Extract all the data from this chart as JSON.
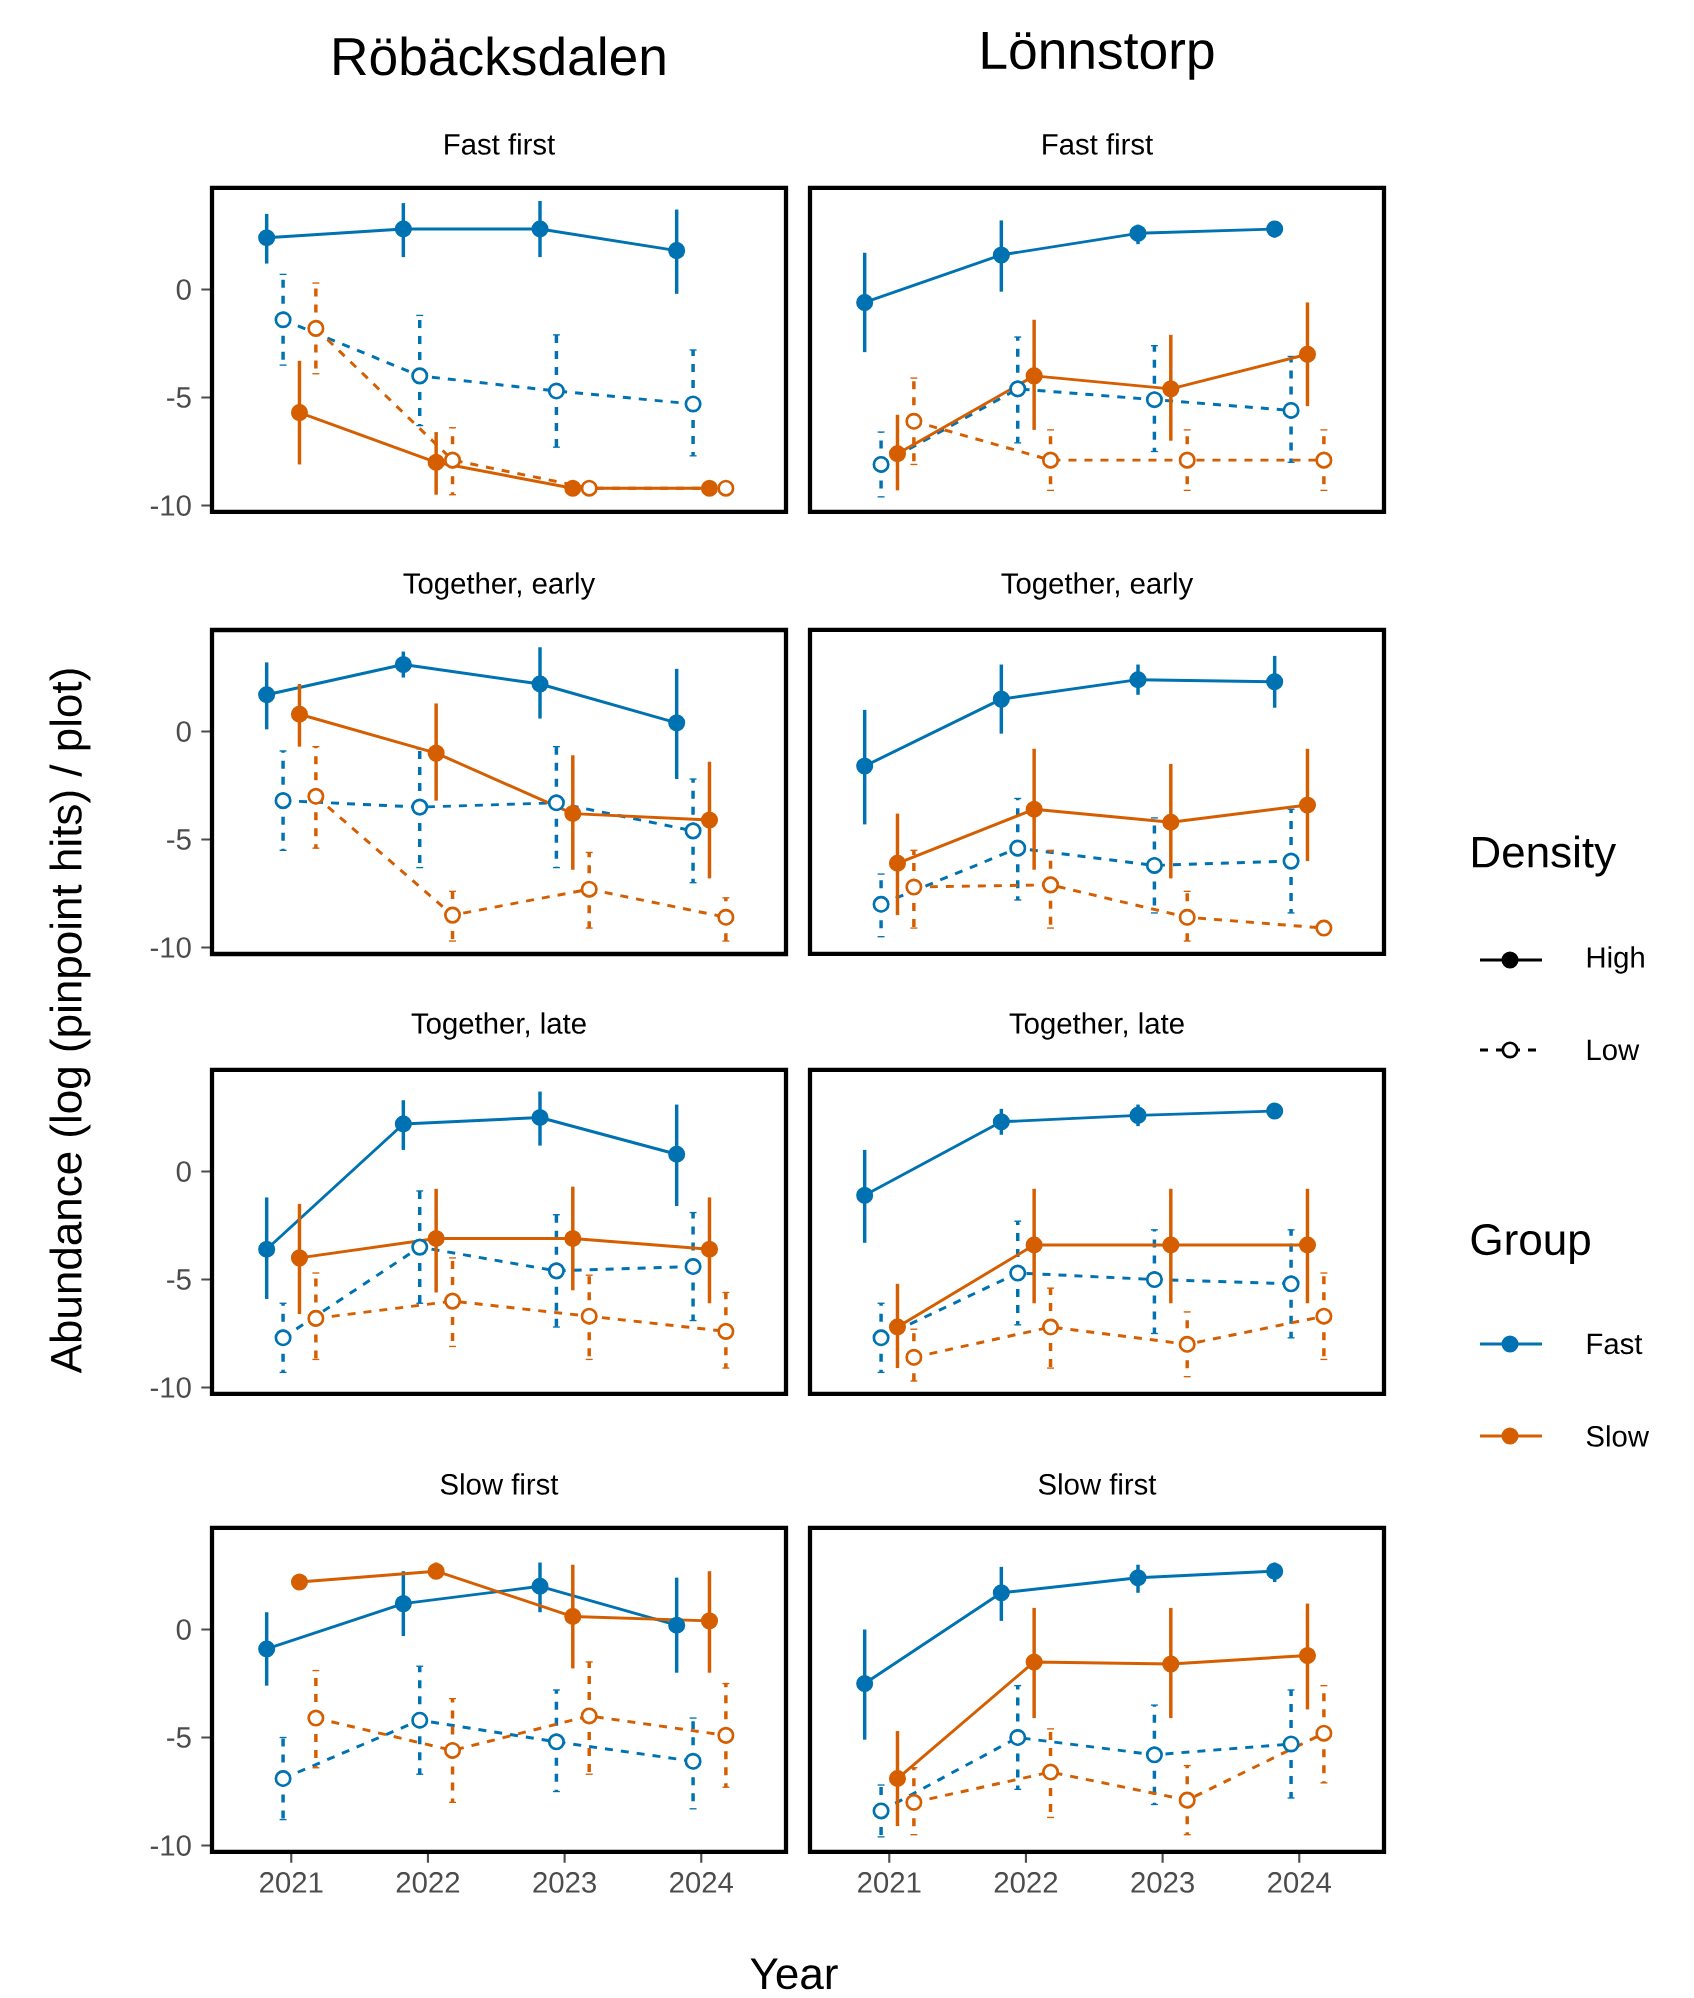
{
  "chart_data": [
    {
      "type": "line",
      "title": "Röbäcksdalen",
      "subtitle": "Fast first",
      "xlim": [
        2020.42,
        2024.62
      ],
      "ylim": [
        -10.3,
        4.7
      ],
      "yticks": [
        -10,
        -5,
        0
      ],
      "tick_labels": "y",
      "marker": "circle",
      "series": [
        {
          "color": "#0072b2",
          "line_style": "solid",
          "x": [
            2020.82,
            2021.82,
            2022.82,
            2023.82
          ],
          "values": [
            2.4,
            2.8,
            2.8,
            1.8
          ],
          "errors": [
            [
              1.2,
              3.5
            ],
            [
              1.5,
              4.0
            ],
            [
              1.5,
              4.1
            ],
            [
              -0.2,
              3.7
            ]
          ]
        },
        {
          "color": "#0072b2",
          "line_style": "dashed",
          "x": [
            2020.94,
            2021.94,
            2022.94,
            2023.94
          ],
          "values": [
            -1.4,
            -4.0,
            -4.7,
            -5.3
          ],
          "errors": [
            [
              -3.5,
              0.7
            ],
            [
              -6.3,
              -1.2
            ],
            [
              -7.3,
              -2.1
            ],
            [
              -7.7,
              -2.8
            ]
          ]
        },
        {
          "color": "#d55e00",
          "line_style": "solid",
          "x": [
            2021.06,
            2022.06,
            2023.06,
            2024.06
          ],
          "values": [
            -5.7,
            -8.0,
            -9.2,
            -9.2
          ],
          "errors": [
            [
              -8.1,
              -3.3
            ],
            [
              -9.5,
              -6.6
            ],
            null,
            null
          ]
        },
        {
          "color": "#d55e00",
          "line_style": "dashed",
          "x": [
            2021.18,
            2022.18,
            2023.18,
            2024.18
          ],
          "values": [
            -1.8,
            -7.9,
            -9.2,
            -9.2
          ],
          "errors": [
            [
              -3.9,
              0.3
            ],
            [
              -9.5,
              -6.4
            ],
            null,
            null
          ]
        }
      ]
    },
    {
      "type": "line",
      "title": "Lönnstorp",
      "subtitle": "Fast first",
      "xlim": [
        2020.42,
        2024.62
      ],
      "ylim": [
        -10.3,
        4.7
      ],
      "tick_labels": false,
      "marker": "circle",
      "series": [
        {
          "color": "#0072b2",
          "line_style": "solid",
          "x": [
            2020.82,
            2021.82,
            2022.82,
            2023.82
          ],
          "values": [
            -0.6,
            1.6,
            2.6,
            2.8
          ],
          "errors": [
            [
              -2.9,
              1.7
            ],
            [
              -0.1,
              3.2
            ],
            [
              2.1,
              3.0
            ],
            [
              2.4,
              3.1
            ]
          ]
        },
        {
          "color": "#0072b2",
          "line_style": "dashed",
          "x": [
            2020.94,
            2021.94,
            2022.94,
            2023.94
          ],
          "values": [
            -8.1,
            -4.6,
            -5.1,
            -5.6
          ],
          "errors": [
            [
              -9.6,
              -6.6
            ],
            [
              -7.1,
              -2.2
            ],
            [
              -7.5,
              -2.6
            ],
            [
              -8.0,
              -3.1
            ]
          ]
        },
        {
          "color": "#d55e00",
          "line_style": "solid",
          "x": [
            2021.06,
            2022.06,
            2023.06,
            2024.06
          ],
          "values": [
            -7.6,
            -4.0,
            -4.6,
            -3.0
          ],
          "errors": [
            [
              -9.3,
              -5.8
            ],
            [
              -6.5,
              -1.4
            ],
            [
              -7.0,
              -2.1
            ],
            [
              -5.4,
              -0.6
            ]
          ]
        },
        {
          "color": "#d55e00",
          "line_style": "dashed",
          "x": [
            2021.18,
            2022.18,
            2023.18,
            2024.18
          ],
          "values": [
            -6.1,
            -7.9,
            -7.9,
            -7.9
          ],
          "errors": [
            [
              -8.1,
              -4.1
            ],
            [
              -9.3,
              -6.5
            ],
            [
              -9.3,
              -6.5
            ],
            [
              -9.3,
              -6.5
            ]
          ]
        }
      ]
    },
    {
      "type": "line",
      "title": "Together, early",
      "ylabel": "Abundance (log (pinpoint hits) / plot)",
      "xlim": [
        2020.42,
        2024.62
      ],
      "ylim": [
        -10.3,
        4.7
      ],
      "yticks": [
        -10,
        -5,
        0
      ],
      "tick_labels": "y",
      "marker": "circle",
      "series": [
        {
          "color": "#0072b2",
          "line_style": "solid",
          "x": [
            2020.82,
            2021.82,
            2022.82,
            2023.82
          ],
          "values": [
            1.7,
            3.1,
            2.2,
            0.4
          ],
          "errors": [
            [
              0.1,
              3.2
            ],
            [
              2.5,
              3.7
            ],
            [
              0.6,
              3.9
            ],
            [
              -2.2,
              2.9
            ]
          ]
        },
        {
          "color": "#0072b2",
          "line_style": "dashed",
          "x": [
            2020.94,
            2021.94,
            2022.94,
            2023.94
          ],
          "values": [
            -3.2,
            -3.5,
            -3.3,
            -4.6
          ],
          "errors": [
            [
              -5.5,
              -0.9
            ],
            [
              -6.3,
              -0.8
            ],
            [
              -6.3,
              -0.7
            ],
            [
              -7.0,
              -2.2
            ]
          ]
        },
        {
          "color": "#d55e00",
          "line_style": "solid",
          "x": [
            2021.06,
            2022.06,
            2023.06,
            2024.06
          ],
          "values": [
            0.8,
            -1.0,
            -3.8,
            -4.1
          ],
          "errors": [
            [
              -0.7,
              2.2
            ],
            [
              -3.2,
              1.3
            ],
            [
              -6.4,
              -1.1
            ],
            [
              -6.8,
              -1.4
            ]
          ]
        },
        {
          "color": "#d55e00",
          "line_style": "dashed",
          "x": [
            2021.18,
            2022.18,
            2023.18,
            2024.18
          ],
          "values": [
            -3.0,
            -8.5,
            -7.3,
            -8.6
          ],
          "errors": [
            [
              -5.4,
              -0.7
            ],
            [
              -9.7,
              -7.4
            ],
            [
              -9.1,
              -5.6
            ],
            [
              -9.7,
              -7.7
            ]
          ]
        }
      ]
    },
    {
      "type": "line",
      "title": "Together, early",
      "xlim": [
        2020.42,
        2024.62
      ],
      "ylim": [
        -10.3,
        4.7
      ],
      "tick_labels": false,
      "marker": "circle",
      "series": [
        {
          "color": "#0072b2",
          "line_style": "solid",
          "x": [
            2020.82,
            2021.82,
            2022.82,
            2023.82
          ],
          "values": [
            -1.6,
            1.5,
            2.4,
            2.3
          ],
          "errors": [
            [
              -4.3,
              1.0
            ],
            [
              -0.1,
              3.1
            ],
            [
              1.7,
              3.1
            ],
            [
              1.1,
              3.5
            ]
          ]
        },
        {
          "color": "#0072b2",
          "line_style": "dashed",
          "x": [
            2020.94,
            2021.94,
            2022.94,
            2023.94
          ],
          "values": [
            -8.0,
            -5.4,
            -6.2,
            -6.0
          ],
          "errors": [
            [
              -9.5,
              -6.6
            ],
            [
              -7.8,
              -3.1
            ],
            [
              -8.4,
              -4.0
            ],
            [
              -8.4,
              -3.6
            ]
          ]
        },
        {
          "color": "#d55e00",
          "line_style": "solid",
          "x": [
            2021.06,
            2022.06,
            2023.06,
            2024.06
          ],
          "values": [
            -6.1,
            -3.6,
            -4.2,
            -3.4
          ],
          "errors": [
            [
              -8.5,
              -3.8
            ],
            [
              -6.4,
              -0.8
            ],
            [
              -6.8,
              -1.5
            ],
            [
              -6.0,
              -0.8
            ]
          ]
        },
        {
          "color": "#d55e00",
          "line_style": "dashed",
          "x": [
            2021.18,
            2022.18,
            2023.18,
            2024.18
          ],
          "values": [
            -7.2,
            -7.1,
            -8.6,
            -9.1
          ],
          "errors": [
            [
              -9.1,
              -5.5
            ],
            [
              -9.1,
              -5.5
            ],
            [
              -9.7,
              -7.4
            ],
            null
          ]
        }
      ]
    },
    {
      "type": "line",
      "title": "Together, late",
      "xlim": [
        2020.42,
        2024.62
      ],
      "ylim": [
        -10.3,
        4.7
      ],
      "yticks": [
        -10,
        -5,
        0
      ],
      "tick_labels": "y",
      "marker": "circle",
      "series": [
        {
          "color": "#0072b2",
          "line_style": "solid",
          "x": [
            2020.82,
            2021.82,
            2022.82,
            2023.82
          ],
          "values": [
            -3.6,
            2.2,
            2.5,
            0.8
          ],
          "errors": [
            [
              -5.9,
              -1.2
            ],
            [
              1.0,
              3.3
            ],
            [
              1.2,
              3.7
            ],
            [
              -1.6,
              3.1
            ]
          ]
        },
        {
          "color": "#0072b2",
          "line_style": "dashed",
          "x": [
            2020.94,
            2021.94,
            2022.94,
            2023.94
          ],
          "values": [
            -7.7,
            -3.5,
            -4.6,
            -4.4
          ],
          "errors": [
            [
              -9.3,
              -6.1
            ],
            [
              -6.1,
              -0.9
            ],
            [
              -7.2,
              -2.0
            ],
            [
              -6.9,
              -1.9
            ]
          ]
        },
        {
          "color": "#d55e00",
          "line_style": "solid",
          "x": [
            2021.06,
            2022.06,
            2023.06,
            2024.06
          ],
          "values": [
            -4.0,
            -3.1,
            -3.1,
            -3.6
          ],
          "errors": [
            [
              -6.6,
              -1.5
            ],
            [
              -5.6,
              -0.8
            ],
            [
              -5.5,
              -0.7
            ],
            [
              -6.1,
              -1.2
            ]
          ]
        },
        {
          "color": "#d55e00",
          "line_style": "dashed",
          "x": [
            2021.18,
            2022.18,
            2023.18,
            2024.18
          ],
          "values": [
            -6.8,
            -6.0,
            -6.7,
            -7.4
          ],
          "errors": [
            [
              -8.7,
              -4.7
            ],
            [
              -8.1,
              -4.0
            ],
            [
              -8.7,
              -4.8
            ],
            [
              -9.1,
              -5.6
            ]
          ]
        }
      ]
    },
    {
      "type": "line",
      "title": "Together, late",
      "xlim": [
        2020.42,
        2024.62
      ],
      "ylim": [
        -10.3,
        4.7
      ],
      "tick_labels": false,
      "marker": "circle",
      "series": [
        {
          "color": "#0072b2",
          "line_style": "solid",
          "x": [
            2020.82,
            2021.82,
            2022.82,
            2023.82
          ],
          "values": [
            -1.1,
            2.3,
            2.6,
            2.8
          ],
          "errors": [
            [
              -3.3,
              1.0
            ],
            [
              1.7,
              2.9
            ],
            [
              2.1,
              3.1
            ],
            null
          ]
        },
        {
          "color": "#0072b2",
          "line_style": "dashed",
          "x": [
            2020.94,
            2021.94,
            2022.94,
            2023.94
          ],
          "values": [
            -7.7,
            -4.7,
            -5.0,
            -5.2
          ],
          "errors": [
            [
              -9.3,
              -6.1
            ],
            [
              -7.1,
              -2.3
            ],
            [
              -7.5,
              -2.7
            ],
            [
              -7.7,
              -2.7
            ]
          ]
        },
        {
          "color": "#d55e00",
          "line_style": "solid",
          "x": [
            2021.06,
            2022.06,
            2023.06,
            2024.06
          ],
          "values": [
            -7.2,
            -3.4,
            -3.4,
            -3.4
          ],
          "errors": [
            [
              -9.1,
              -5.2
            ],
            [
              -6.1,
              -0.8
            ],
            [
              -6.1,
              -0.8
            ],
            [
              -6.1,
              -0.8
            ]
          ]
        },
        {
          "color": "#d55e00",
          "line_style": "dashed",
          "x": [
            2021.18,
            2022.18,
            2023.18,
            2024.18
          ],
          "values": [
            -8.6,
            -7.2,
            -8.0,
            -6.7
          ],
          "errors": [
            [
              -9.7,
              -7.3
            ],
            [
              -9.1,
              -5.4
            ],
            [
              -9.5,
              -6.5
            ],
            [
              -8.7,
              -4.7
            ]
          ]
        }
      ]
    },
    {
      "type": "line",
      "title": "Slow first",
      "xlabel": "Year",
      "xlim": [
        2020.42,
        2024.62
      ],
      "ylim": [
        -10.3,
        4.7
      ],
      "xticks": [
        2021,
        2022,
        2023,
        2024
      ],
      "yticks": [
        -10,
        -5,
        0
      ],
      "marker": "circle",
      "series": [
        {
          "color": "#0072b2",
          "line_style": "solid",
          "x": [
            2020.82,
            2021.82,
            2022.82,
            2023.82
          ],
          "values": [
            -0.9,
            1.2,
            2.0,
            0.2
          ],
          "errors": [
            [
              -2.6,
              0.8
            ],
            [
              -0.3,
              2.7
            ],
            [
              0.8,
              3.1
            ],
            [
              -2.0,
              2.4
            ]
          ]
        },
        {
          "color": "#0072b2",
          "line_style": "dashed",
          "x": [
            2020.94,
            2021.94,
            2022.94,
            2023.94
          ],
          "values": [
            -6.9,
            -4.2,
            -5.2,
            -6.1
          ],
          "errors": [
            [
              -8.8,
              -5.0
            ],
            [
              -6.7,
              -1.7
            ],
            [
              -7.5,
              -2.8
            ],
            [
              -8.3,
              -4.1
            ]
          ]
        },
        {
          "color": "#d55e00",
          "line_style": "solid",
          "x": [
            2021.06,
            2022.06,
            2023.06,
            2024.06
          ],
          "values": [
            2.2,
            2.7,
            0.6,
            0.4
          ],
          "errors": [
            [
              1.9,
              2.5
            ],
            [
              2.4,
              3.1
            ],
            [
              -1.8,
              3.0
            ],
            [
              -2.0,
              2.7
            ]
          ]
        },
        {
          "color": "#d55e00",
          "line_style": "dashed",
          "x": [
            2021.18,
            2022.18,
            2023.18,
            2024.18
          ],
          "values": [
            -4.1,
            -5.6,
            -4.0,
            -4.9
          ],
          "errors": [
            [
              -6.4,
              -1.9
            ],
            [
              -8.0,
              -3.2
            ],
            [
              -6.7,
              -1.5
            ],
            [
              -7.3,
              -2.5
            ]
          ]
        }
      ]
    },
    {
      "type": "line",
      "title": "Slow first",
      "xlim": [
        2020.42,
        2024.62
      ],
      "ylim": [
        -10.3,
        4.7
      ],
      "xticks": [
        2021,
        2022,
        2023,
        2024
      ],
      "tick_labels": "x",
      "marker": "circle",
      "series": [
        {
          "color": "#0072b2",
          "line_style": "solid",
          "x": [
            2020.82,
            2021.82,
            2022.82,
            2023.82
          ],
          "values": [
            -2.5,
            1.7,
            2.4,
            2.7
          ],
          "errors": [
            [
              -5.1,
              0.0
            ],
            [
              0.4,
              2.9
            ],
            [
              1.7,
              3.0
            ],
            [
              2.2,
              3.1
            ]
          ]
        },
        {
          "color": "#0072b2",
          "line_style": "dashed",
          "x": [
            2020.94,
            2021.94,
            2022.94,
            2023.94
          ],
          "values": [
            -8.4,
            -5.0,
            -5.8,
            -5.3
          ],
          "errors": [
            [
              -9.6,
              -7.2
            ],
            [
              -7.4,
              -2.6
            ],
            [
              -8.1,
              -3.5
            ],
            [
              -7.8,
              -2.8
            ]
          ]
        },
        {
          "color": "#d55e00",
          "line_style": "solid",
          "x": [
            2021.06,
            2022.06,
            2023.06,
            2024.06
          ],
          "values": [
            -6.9,
            -1.5,
            -1.6,
            -1.2
          ],
          "errors": [
            [
              -9.1,
              -4.7
            ],
            [
              -4.1,
              1.0
            ],
            [
              -4.1,
              1.0
            ],
            [
              -3.7,
              1.2
            ]
          ]
        },
        {
          "color": "#d55e00",
          "line_style": "dashed",
          "x": [
            2021.18,
            2022.18,
            2023.18,
            2024.18
          ],
          "values": [
            -8.0,
            -6.6,
            -7.9,
            -4.8
          ],
          "errors": [
            [
              -9.5,
              -6.4
            ],
            [
              -8.7,
              -4.6
            ],
            [
              -9.5,
              -6.3
            ],
            [
              -7.1,
              -2.6
            ]
          ]
        }
      ]
    },
    {
      "type": "other",
      "annotations": [
        "Density",
        "High",
        "Low",
        "Group",
        "Fast",
        "Slow"
      ]
    }
  ]
}
